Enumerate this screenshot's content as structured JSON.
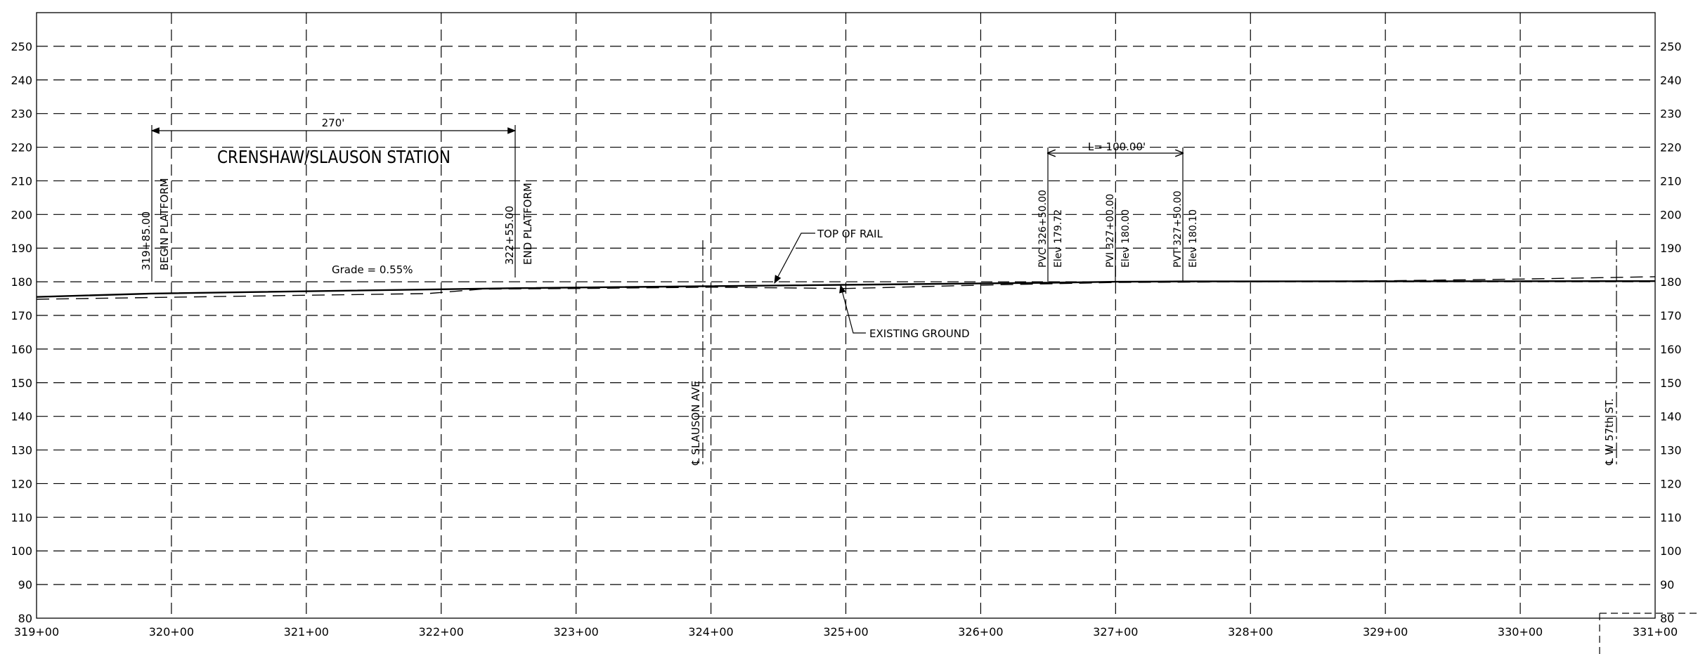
{
  "chart_data": {
    "type": "line",
    "x_ticks": [
      "319+00",
      "320+00",
      "321+00",
      "322+00",
      "323+00",
      "324+00",
      "325+00",
      "326+00",
      "327+00",
      "328+00",
      "329+00",
      "330+00",
      "331+00"
    ],
    "y_ticks": [
      "80",
      "90",
      "100",
      "110",
      "120",
      "130",
      "140",
      "150",
      "160",
      "170",
      "180",
      "190",
      "200",
      "210",
      "220",
      "230",
      "240",
      "250"
    ],
    "xlim": [
      319,
      331
    ],
    "ylim": [
      80,
      260
    ],
    "grid": true,
    "series": [
      {
        "name": "TOP OF RAIL",
        "x": [
          319.0,
          319.85,
          322.55,
          326.5,
          327.0,
          327.5,
          331.0
        ],
        "y": [
          175.5,
          176.5,
          178.1,
          179.72,
          180.0,
          180.1,
          180.2
        ]
      },
      {
        "name": "EXISTING GROUND",
        "x": [
          319.0,
          320.0,
          321.0,
          321.9,
          322.3,
          323.0,
          324.0,
          325.0,
          326.0,
          327.0,
          328.0,
          329.0,
          330.0,
          331.0
        ],
        "y": [
          174.8,
          175.4,
          176.0,
          176.5,
          177.8,
          178.0,
          178.4,
          178.0,
          179.0,
          179.8,
          180.0,
          180.3,
          180.8,
          181.5
        ]
      }
    ]
  },
  "station_name": "CRENSHAW/SLAUSON STATION",
  "platform": {
    "length": "270'",
    "begin_label": "BEGIN PLATFORM",
    "begin_station": "319+85.00",
    "end_label": "END PLATFORM",
    "end_station": "322+55.00",
    "grade": "Grade = 0.55%"
  },
  "vertical_curve": {
    "length_label": "L= 100.00'",
    "pvc_station": "PVC 326+50.00",
    "pvc_elev": "Elev 179.72",
    "pvi_station": "PVI 327+00.00",
    "pvi_elev": "Elev 180.00",
    "pvt_station": "PVT 327+50.00",
    "pvt_elev": "Elev 180.10"
  },
  "callouts": {
    "top_of_rail": "TOP OF RAIL",
    "existing_ground": "EXISTING GROUND"
  },
  "cross_streets": {
    "slauson": "℄ SLAUSON AVE",
    "w57th": "℄ W 57th ST."
  }
}
